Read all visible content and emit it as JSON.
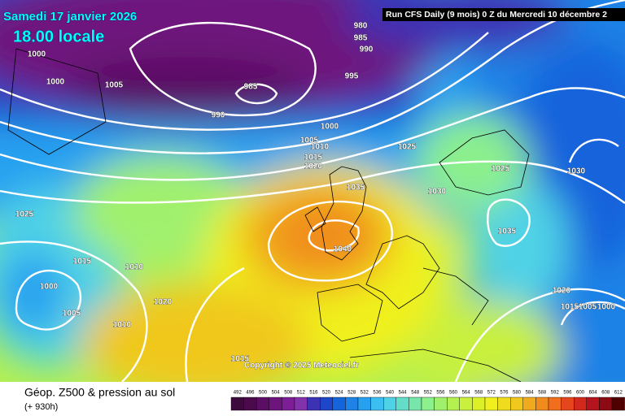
{
  "header": {
    "date": "Samedi 17 janvier 2026",
    "time": "18.00 locale",
    "run": "Run CFS Daily (9 mois) 0 Z du Mercredi 10 décembre 2"
  },
  "copyright": "Copyright © 2025 Meteociel.fr",
  "footer": {
    "title": "Géop. Z500 & pression au sol",
    "lead": "(+ 930h)"
  },
  "isobar_labels": [
    1000,
    1000,
    1005,
    985,
    990,
    980,
    985,
    990,
    995,
    1000,
    1005,
    1010,
    1015,
    1020,
    1025,
    1035,
    1030,
    1025,
    1030,
    1035,
    1040,
    1025,
    1015,
    1010,
    1000,
    1005,
    1020,
    1010,
    1015,
    1020,
    1015,
    1005,
    1000
  ],
  "legend": [
    {
      "label": "492",
      "color": "#3c0a3c"
    },
    {
      "label": "496",
      "color": "#4b0a4b"
    },
    {
      "label": "500",
      "color": "#5a0f64"
    },
    {
      "label": "504",
      "color": "#6e147d"
    },
    {
      "label": "508",
      "color": "#7d1e96"
    },
    {
      "label": "512",
      "color": "#8232aa"
    },
    {
      "label": "516",
      "color": "#3c32b4"
    },
    {
      "label": "520",
      "color": "#1e46c8"
    },
    {
      "label": "524",
      "color": "#1464dc"
    },
    {
      "label": "528",
      "color": "#1e82e6"
    },
    {
      "label": "532",
      "color": "#28a0f0"
    },
    {
      "label": "536",
      "color": "#3cbef0"
    },
    {
      "label": "540",
      "color": "#50d2e6"
    },
    {
      "label": "544",
      "color": "#64dcc8"
    },
    {
      "label": "548",
      "color": "#78e6aa"
    },
    {
      "label": "552",
      "color": "#8cf08c"
    },
    {
      "label": "556",
      "color": "#a0f06e"
    },
    {
      "label": "560",
      "color": "#b4f050"
    },
    {
      "label": "564",
      "color": "#c8f03c"
    },
    {
      "label": "568",
      "color": "#dcf028"
    },
    {
      "label": "572",
      "color": "#f0f01e"
    },
    {
      "label": "576",
      "color": "#f0dc1e"
    },
    {
      "label": "580",
      "color": "#f0c81e"
    },
    {
      "label": "584",
      "color": "#f0aa1e"
    },
    {
      "label": "588",
      "color": "#f08c1e"
    },
    {
      "label": "592",
      "color": "#f06e1e"
    },
    {
      "label": "596",
      "color": "#e6461e"
    },
    {
      "label": "600",
      "color": "#d2281e"
    },
    {
      "label": "604",
      "color": "#b4141e"
    },
    {
      "label": "608",
      "color": "#8c0a14"
    },
    {
      "label": "612",
      "color": "#500000"
    }
  ]
}
